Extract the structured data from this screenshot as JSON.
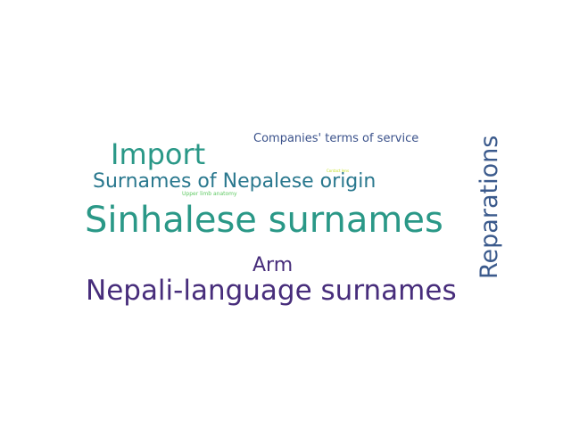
{
  "words": [
    {
      "text": "Sinhalese surnames",
      "color": "#2a9887"
    },
    {
      "text": "Nepali-language surnames",
      "color": "#472d7b"
    },
    {
      "text": "Reparations",
      "color": "#3b5a8c"
    },
    {
      "text": "Import",
      "color": "#2a9887"
    },
    {
      "text": "Surnames of Nepalese origin",
      "color": "#2a788e"
    },
    {
      "text": "Arm",
      "color": "#472d7b"
    },
    {
      "text": "Companies' terms of service",
      "color": "#3b528b"
    },
    {
      "text": "Upper limb anatomy",
      "color": "#5ec962"
    },
    {
      "text": "Contact lens",
      "color": "#c2df23"
    }
  ]
}
